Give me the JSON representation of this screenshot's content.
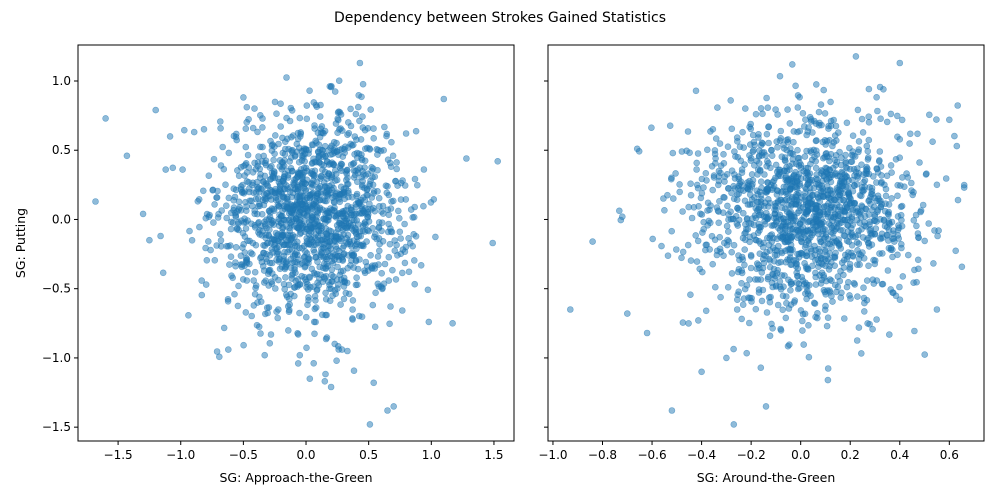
{
  "title": "Dependency between Strokes Gained Statistics",
  "chart_data": [
    {
      "type": "scatter",
      "xlabel": "SG: Approach-the-Green",
      "ylabel": "SG: Putting",
      "xlim": [
        -1.82,
        1.66
      ],
      "ylim": [
        -1.6,
        1.26
      ],
      "xticks": [
        -1.5,
        -1.0,
        -0.5,
        0.0,
        0.5,
        1.0,
        1.5
      ],
      "xtick_labels": [
        "−1.5",
        "−1.0",
        "−0.5",
        "0.0",
        "0.5",
        "1.0",
        "1.5"
      ],
      "yticks": [
        -1.5,
        -1.0,
        -0.5,
        0.0,
        0.5,
        1.0
      ],
      "ytick_labels": [
        "−1.5",
        "−1.0",
        "−0.5",
        "0.0",
        "0.5",
        "1.0"
      ],
      "color": "#1f77b4",
      "point_count": 1500,
      "x_mean": 0.05,
      "x_sd": 0.38,
      "y_mean": 0.04,
      "y_sd": 0.36,
      "outliers": [
        [
          -1.68,
          0.13
        ],
        [
          -1.6,
          0.73
        ],
        [
          -1.43,
          0.46
        ],
        [
          -1.3,
          0.04
        ],
        [
          -1.25,
          -0.15
        ],
        [
          -1.2,
          0.79
        ],
        [
          -1.12,
          0.36
        ],
        [
          1.53,
          0.42
        ],
        [
          1.49,
          -0.17
        ],
        [
          1.28,
          0.44
        ],
        [
          1.1,
          0.87
        ],
        [
          1.17,
          -0.75
        ],
        [
          0.98,
          -0.74
        ],
        [
          0.43,
          1.13
        ],
        [
          0.51,
          -1.48
        ],
        [
          0.7,
          -1.35
        ],
        [
          0.65,
          -1.38
        ],
        [
          0.2,
          -1.21
        ],
        [
          0.03,
          -1.15
        ],
        [
          0.54,
          -1.18
        ],
        [
          -0.62,
          -0.94
        ],
        [
          -0.33,
          -0.98
        ],
        [
          0.33,
          -0.95
        ],
        [
          -0.05,
          -0.98
        ]
      ]
    },
    {
      "type": "scatter",
      "xlabel": "SG: Around-the-Green",
      "ylabel": "",
      "xlim": [
        -1.02,
        0.74
      ],
      "ylim": [
        -1.6,
        1.26
      ],
      "xticks": [
        -1.0,
        -0.8,
        -0.6,
        -0.4,
        -0.2,
        0.0,
        0.2,
        0.4,
        0.6
      ],
      "xtick_labels": [
        "−1.0",
        "−0.8",
        "−0.6",
        "−0.4",
        "−0.2",
        "0.0",
        "0.2",
        "0.4",
        "0.6"
      ],
      "yticks": [
        -1.5,
        -1.0,
        -0.5,
        0.0,
        0.5,
        1.0
      ],
      "ytick_labels": [
        "",
        "",
        "",
        "",
        "",
        ""
      ],
      "color": "#1f77b4",
      "point_count": 1500,
      "x_mean": 0.02,
      "x_sd": 0.22,
      "y_mean": 0.04,
      "y_sd": 0.36,
      "outliers": [
        [
          -0.93,
          -0.65
        ],
        [
          -0.84,
          -0.16
        ],
        [
          -0.72,
          0.02
        ],
        [
          -0.7,
          -0.68
        ],
        [
          -0.66,
          0.51
        ],
        [
          -0.62,
          -0.82
        ],
        [
          0.66,
          0.23
        ],
        [
          0.63,
          0.53
        ],
        [
          0.6,
          0.72
        ],
        [
          0.55,
          -0.65
        ],
        [
          0.4,
          1.13
        ],
        [
          -0.52,
          -1.38
        ],
        [
          -0.27,
          -1.48
        ],
        [
          -0.14,
          -1.35
        ],
        [
          0.11,
          -1.16
        ],
        [
          -0.3,
          -1.0
        ],
        [
          -0.4,
          -1.1
        ],
        [
          0.55,
          0.25
        ]
      ]
    }
  ]
}
